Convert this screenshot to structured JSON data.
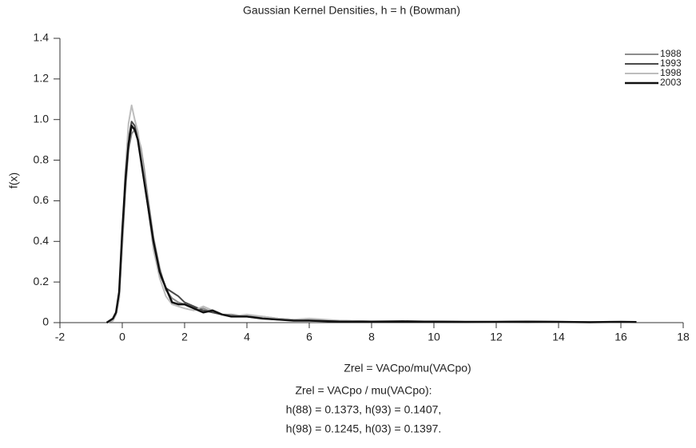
{
  "chart_data": {
    "type": "line",
    "title": "Gaussian Kernel Densities, h = h (Bowman)",
    "x_label": "Zrel = VACpo/mu(VACpo)",
    "y_label": "f(x)",
    "caption": [
      "Zrel = VACpo / mu(VACpo):",
      "h(88) = 0.1373, h(93) = 0.1407,",
      "h(98) = 0.1245, h(03) = 0.1397."
    ],
    "x": [
      -0.5,
      -0.3,
      -0.2,
      -0.1,
      0,
      0.1,
      0.2,
      0.3,
      0.4,
      0.5,
      0.6,
      0.7,
      0.8,
      1.0,
      1.2,
      1.4,
      1.6,
      1.8,
      2.0,
      2.3,
      2.6,
      2.9,
      3.2,
      3.5,
      4,
      4.5,
      5,
      5.5,
      6,
      7,
      8,
      9,
      10,
      11,
      12,
      13,
      14,
      15,
      16,
      16.5
    ],
    "series": [
      {
        "name": "1988",
        "color": "#8c8c8c",
        "width": 2,
        "values": [
          0,
          0.01,
          0.04,
          0.12,
          0.38,
          0.65,
          0.85,
          0.93,
          0.95,
          0.92,
          0.86,
          0.76,
          0.64,
          0.42,
          0.27,
          0.16,
          0.12,
          0.1,
          0.09,
          0.07,
          0.07,
          0.05,
          0.04,
          0.04,
          0.03,
          0.03,
          0.02,
          0.015,
          0.012,
          0.01,
          0.006,
          0.005,
          0.006,
          0.004,
          0.003,
          0.004,
          0.003,
          0.002,
          0.002,
          0.002
        ]
      },
      {
        "name": "1993",
        "color": "#4a4a4a",
        "width": 2,
        "values": [
          0,
          0.01,
          0.05,
          0.14,
          0.42,
          0.7,
          0.9,
          0.99,
          0.97,
          0.9,
          0.82,
          0.7,
          0.6,
          0.38,
          0.24,
          0.17,
          0.15,
          0.13,
          0.1,
          0.08,
          0.06,
          0.05,
          0.04,
          0.03,
          0.03,
          0.02,
          0.015,
          0.012,
          0.01,
          0.007,
          0.006,
          0.008,
          0.005,
          0.004,
          0.004,
          0.005,
          0.004,
          0.003,
          0.003,
          0.002
        ]
      },
      {
        "name": "1998",
        "color": "#bdbdbd",
        "width": 2,
        "values": [
          0,
          0.01,
          0.04,
          0.12,
          0.4,
          0.75,
          0.98,
          1.07,
          1.0,
          0.94,
          0.84,
          0.72,
          0.6,
          0.36,
          0.22,
          0.13,
          0.09,
          0.08,
          0.07,
          0.06,
          0.08,
          0.06,
          0.04,
          0.03,
          0.04,
          0.03,
          0.02,
          0.015,
          0.02,
          0.01,
          0.005,
          0.006,
          0.004,
          0.004,
          0.003,
          0.004,
          0.003,
          0.002,
          0.002,
          0.002
        ]
      },
      {
        "name": "2003",
        "color": "#111111",
        "width": 2.5,
        "values": [
          0,
          0.02,
          0.05,
          0.15,
          0.45,
          0.7,
          0.88,
          0.97,
          0.95,
          0.9,
          0.8,
          0.7,
          0.6,
          0.4,
          0.25,
          0.17,
          0.1,
          0.09,
          0.09,
          0.07,
          0.05,
          0.06,
          0.04,
          0.03,
          0.03,
          0.02,
          0.015,
          0.01,
          0.01,
          0.005,
          0.005,
          0.005,
          0.005,
          0.004,
          0.004,
          0.005,
          0.004,
          0.002,
          0.004,
          0.003
        ]
      }
    ],
    "xlim": [
      -2,
      18
    ],
    "xticks": [
      -2,
      0,
      2,
      4,
      6,
      8,
      10,
      12,
      14,
      16,
      18
    ],
    "ylim": [
      0,
      1.4
    ],
    "yticks": [
      0,
      0.2,
      0.4,
      0.6,
      0.8,
      {
        "value": 1,
        "label": "1.0"
      },
      1.2,
      1.4
    ],
    "legend": "upper right",
    "grid": false
  }
}
